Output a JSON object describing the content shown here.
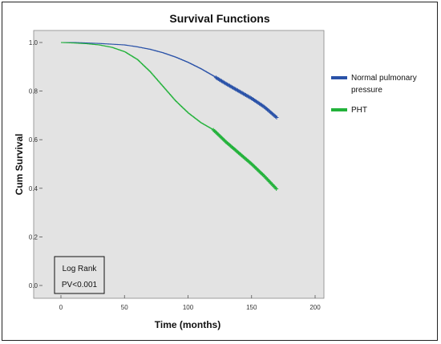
{
  "chart_data": {
    "type": "line",
    "title": "Survival Functions",
    "xlabel": "Time (months)",
    "ylabel": "Cum Survival",
    "xlim": [
      0,
      200
    ],
    "ylim": [
      0,
      1.0
    ],
    "x_ticks": [
      "0",
      "50",
      "100",
      "150",
      "200"
    ],
    "y_ticks": [
      "0.0",
      "0.2",
      "0.4",
      "0.6",
      "0.8",
      "1.0"
    ],
    "legend_position": "right",
    "annotation": {
      "title": "Log Rank",
      "text": "PV<0.001"
    },
    "series": [
      {
        "name": "Normal pulmonary pressure",
        "color": "#2a52a8",
        "censored_from": 122,
        "x": [
          0,
          10,
          20,
          30,
          40,
          50,
          60,
          70,
          80,
          90,
          100,
          110,
          120,
          130,
          140,
          150,
          160,
          170
        ],
        "y": [
          1.0,
          1.0,
          0.998,
          0.996,
          0.993,
          0.99,
          0.982,
          0.972,
          0.958,
          0.94,
          0.918,
          0.892,
          0.862,
          0.83,
          0.8,
          0.77,
          0.735,
          0.69
        ]
      },
      {
        "name": "PHT",
        "color": "#22b23a",
        "censored_from": 120,
        "x": [
          0,
          10,
          20,
          30,
          40,
          50,
          60,
          70,
          80,
          90,
          100,
          110,
          120,
          130,
          140,
          150,
          160,
          170
        ],
        "y": [
          1.0,
          0.998,
          0.995,
          0.99,
          0.98,
          0.962,
          0.93,
          0.88,
          0.82,
          0.76,
          0.71,
          0.67,
          0.64,
          0.59,
          0.545,
          0.5,
          0.45,
          0.395
        ]
      }
    ]
  }
}
